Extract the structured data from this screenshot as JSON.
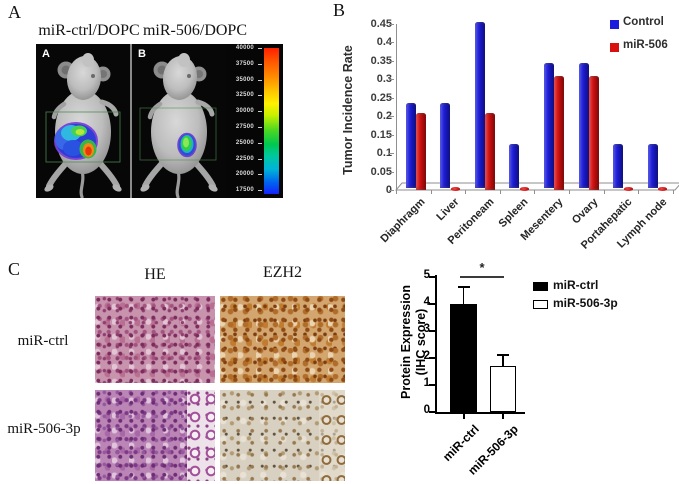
{
  "panel_a": {
    "label": "A",
    "image_titles": [
      "miR-ctrl/DOPC",
      "miR-506/DOPC"
    ],
    "photo_labels": [
      "A",
      "B"
    ],
    "colorbar_values": [
      "40000",
      "37500",
      "35000",
      "32500",
      "30000",
      "27500",
      "25000",
      "22500",
      "20000",
      "17500"
    ]
  },
  "panel_b": {
    "label": "B"
  },
  "panel_c": {
    "label": "C",
    "column_headers": [
      "HE",
      "EZH2"
    ],
    "row_labels": [
      "miR-ctrl",
      "miR-506-3p"
    ]
  },
  "chart_data": [
    {
      "type": "bar",
      "style": "excel-3d-grouped",
      "title": "",
      "xlabel": "",
      "ylabel": "Tumor Incidence Rate",
      "ylim": [
        0,
        0.45
      ],
      "yticks": [
        "0.45",
        "0.4",
        "0.35",
        "0.3",
        "0.25",
        "0.2",
        "0.15",
        "0.1",
        "0.05",
        "0"
      ],
      "grid": false,
      "legend_position": "top-right",
      "categories": [
        "Diaphragm",
        "Liver",
        "Peritoneam",
        "Spleen",
        "Mesentery",
        "Ovary",
        "Portahepatic",
        "Lymph node"
      ],
      "series": [
        {
          "name": "Control",
          "color": "#1c1cdd",
          "values": [
            0.23,
            0.23,
            0.45,
            0.12,
            0.34,
            0.34,
            0.12,
            0.12
          ]
        },
        {
          "name": "miR-506",
          "color": "#d81010",
          "values": [
            0.21,
            0.005,
            0.21,
            0.005,
            0.31,
            0.31,
            0.005,
            0.005
          ]
        }
      ]
    },
    {
      "type": "bar",
      "style": "prism-column-with-error-bars",
      "title": "",
      "xlabel": "",
      "ylabel": "Protein Expression (IHC score)",
      "ylabel_lines": [
        "Protein Expression",
        "(IHC score)"
      ],
      "ylim": [
        0,
        5
      ],
      "yticks": [
        "0",
        "1",
        "2",
        "3",
        "4",
        "5"
      ],
      "grid": false,
      "categories": [
        "miR-ctrl",
        "miR-506-3p"
      ],
      "values": [
        4.0,
        1.7
      ],
      "errors": [
        0.65,
        0.45
      ],
      "bar_fills": [
        "#000000",
        "#ffffff"
      ],
      "significance": "*",
      "legend": [
        {
          "label": "miR-ctrl",
          "fill": "#000000"
        },
        {
          "label": "miR-506-3p",
          "fill": "#ffffff"
        }
      ]
    }
  ]
}
